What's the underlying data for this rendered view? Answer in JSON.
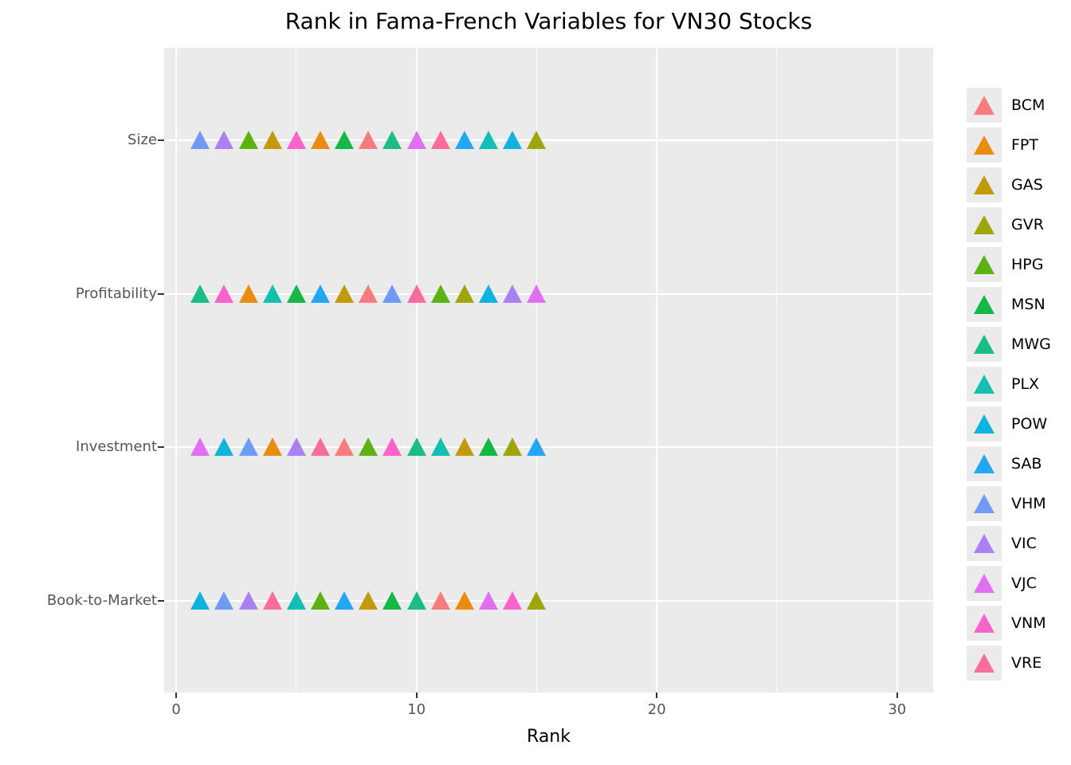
{
  "figure": {
    "background": "#FFFFFF",
    "plot_background": "#EBEBEB",
    "grid_color": "#FFFFFF",
    "tick_mark_color": "#333333",
    "tick_label_color": "#555555",
    "text_color": "#000000"
  },
  "chart_data": {
    "type": "scatter",
    "marker_shape": "triangle-up",
    "title": "Rank in Fama-French Variables for VN30 Stocks",
    "xlabel": "Rank",
    "ylabel": "",
    "grid": "on",
    "legend_position": "right",
    "xlim": [
      -0.5,
      31.5
    ],
    "xticks": [
      0,
      10,
      20,
      30
    ],
    "xticks_minor": [
      5,
      15,
      25
    ],
    "categories": [
      "Size",
      "Profitability",
      "Investment",
      "Book-to-Market"
    ],
    "series": [
      {
        "name": "BCM",
        "color": "#F77B7F",
        "ranks": {
          "Size": 8,
          "Profitability": 8,
          "Investment": 7,
          "Book-to-Market": 11
        }
      },
      {
        "name": "FPT",
        "color": "#EA8C0F",
        "ranks": {
          "Size": 6,
          "Profitability": 3,
          "Investment": 4,
          "Book-to-Market": 12
        }
      },
      {
        "name": "GAS",
        "color": "#C39A0A",
        "ranks": {
          "Size": 4,
          "Profitability": 7,
          "Investment": 12,
          "Book-to-Market": 8
        }
      },
      {
        "name": "GVR",
        "color": "#9EA50B",
        "ranks": {
          "Size": 15,
          "Profitability": 12,
          "Investment": 14,
          "Book-to-Market": 15
        }
      },
      {
        "name": "HPG",
        "color": "#5BB313",
        "ranks": {
          "Size": 3,
          "Profitability": 11,
          "Investment": 8,
          "Book-to-Market": 6
        }
      },
      {
        "name": "MSN",
        "color": "#16B845",
        "ranks": {
          "Size": 7,
          "Profitability": 5,
          "Investment": 13,
          "Book-to-Market": 9
        }
      },
      {
        "name": "MWG",
        "color": "#1CBC89",
        "ranks": {
          "Size": 9,
          "Profitability": 1,
          "Investment": 10,
          "Book-to-Market": 10
        }
      },
      {
        "name": "PLX",
        "color": "#12BFB2",
        "ranks": {
          "Size": 13,
          "Profitability": 4,
          "Investment": 11,
          "Book-to-Market": 5
        }
      },
      {
        "name": "POW",
        "color": "#0FB3DD",
        "ranks": {
          "Size": 14,
          "Profitability": 13,
          "Investment": 2,
          "Book-to-Market": 1
        }
      },
      {
        "name": "SAB",
        "color": "#22A6F5",
        "ranks": {
          "Size": 12,
          "Profitability": 6,
          "Investment": 15,
          "Book-to-Market": 7
        }
      },
      {
        "name": "VHM",
        "color": "#6F9AF5",
        "ranks": {
          "Size": 1,
          "Profitability": 9,
          "Investment": 3,
          "Book-to-Market": 2
        }
      },
      {
        "name": "VIC",
        "color": "#AA80F5",
        "ranks": {
          "Size": 2,
          "Profitability": 14,
          "Investment": 5,
          "Book-to-Market": 3
        }
      },
      {
        "name": "VJC",
        "color": "#E06FF2",
        "ranks": {
          "Size": 10,
          "Profitability": 15,
          "Investment": 1,
          "Book-to-Market": 13
        }
      },
      {
        "name": "VNM",
        "color": "#F964CC",
        "ranks": {
          "Size": 5,
          "Profitability": 2,
          "Investment": 9,
          "Book-to-Market": 14
        }
      },
      {
        "name": "VRE",
        "color": "#FA6B9E",
        "ranks": {
          "Size": 11,
          "Profitability": 10,
          "Investment": 6,
          "Book-to-Market": 4
        }
      }
    ]
  }
}
